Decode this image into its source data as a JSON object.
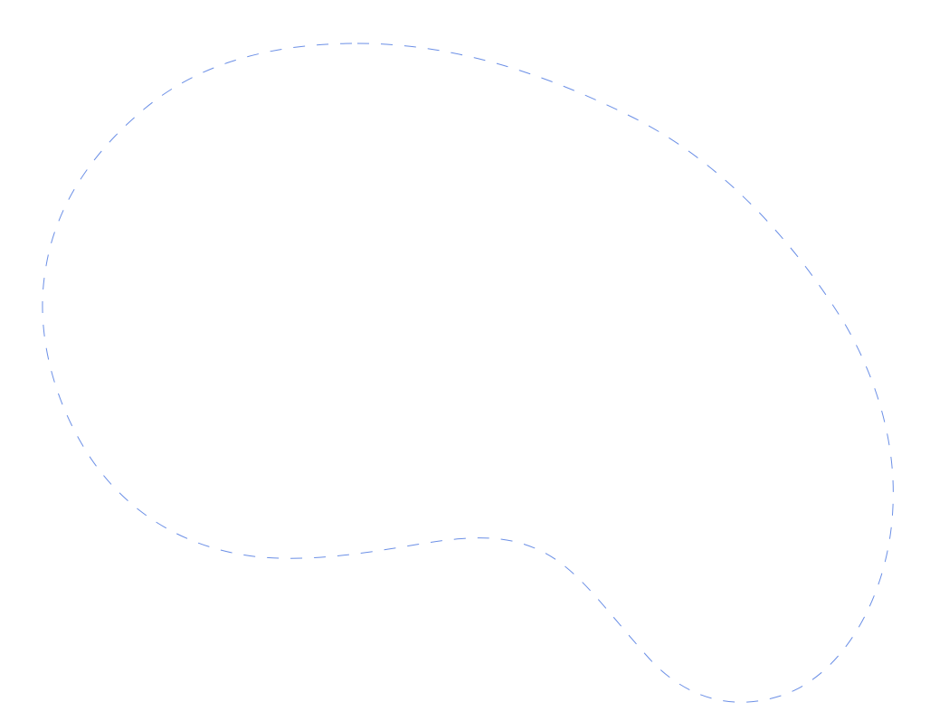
{
  "shape": {
    "kind": "closed-curve",
    "stroke_style": "dashed",
    "stroke_color": "#6b8fe6",
    "fill": "none"
  },
  "background": "#ffffff"
}
